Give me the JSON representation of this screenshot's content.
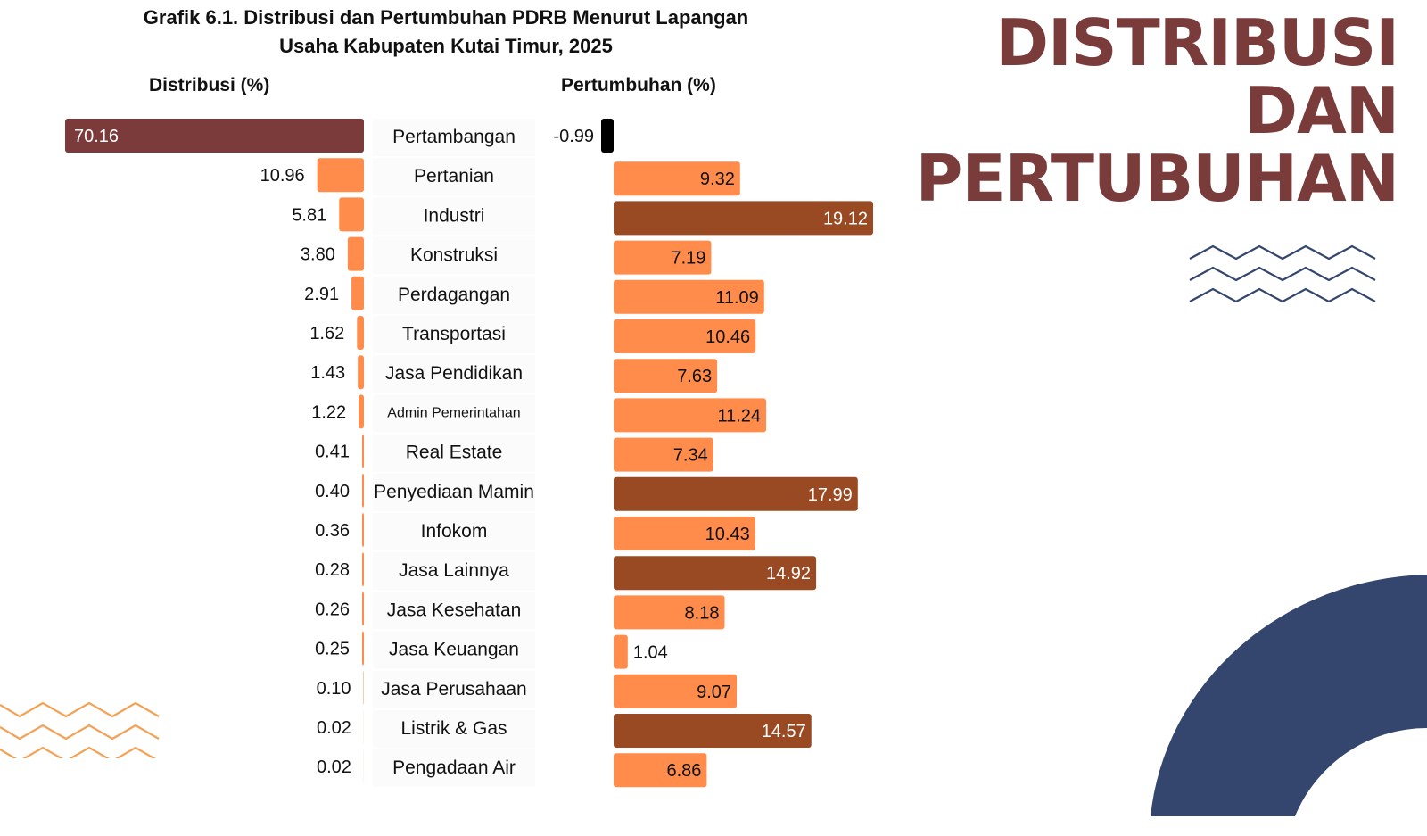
{
  "chart_data": {
    "type": "bar",
    "title": "Grafik 6.1. Distribusi dan Pertumbuhan PDRB Menurut Lapangan Usaha Kabupaten Kutai Timur, 2025",
    "title_lines": [
      "Grafik 6.1. Distribusi dan Pertumbuhan PDRB Menurut Lapangan",
      "Usaha Kabupaten Kutai Timur, 2025"
    ],
    "orientation": "horizontal",
    "categories": [
      "Pertambangan",
      "Pertanian",
      "Industri",
      "Konstruksi",
      "Perdagangan",
      "Transportasi",
      "Jasa Pendidikan",
      "Admin Pemerintahan",
      "Real Estate",
      "Penyediaan Mamin",
      "Infokom",
      "Jasa Lainnya",
      "Jasa Kesehatan",
      "Jasa Keuangan",
      "Jasa Perusahaan",
      "Listrik & Gas",
      "Pengadaan Air"
    ],
    "series": [
      {
        "name": "Distribusi (%)",
        "direction": "left",
        "values": [
          70.16,
          10.96,
          5.81,
          3.8,
          2.91,
          1.62,
          1.43,
          1.22,
          0.41,
          0.4,
          0.36,
          0.28,
          0.26,
          0.25,
          0.1,
          0.02,
          0.02
        ],
        "labels": [
          "70.16",
          "10.96",
          "5.81",
          "3.80",
          "2.91",
          "1.62",
          "1.43",
          "1.22",
          "0.41",
          "0.40",
          "0.36",
          "0.28",
          "0.26",
          "0.25",
          "0.10",
          "0.02",
          "0.02"
        ]
      },
      {
        "name": "Pertumbuhan (%)",
        "direction": "right",
        "values": [
          -0.99,
          9.32,
          19.12,
          7.19,
          11.09,
          10.46,
          7.63,
          11.24,
          7.34,
          17.99,
          10.43,
          14.92,
          8.18,
          1.04,
          9.07,
          14.57,
          6.86
        ],
        "labels": [
          "-0.99",
          "9.32",
          "19.12",
          "7.19",
          "11.09",
          "10.46",
          "7.63",
          "11.24",
          "7.34",
          "17.99",
          "10.43",
          "14.92",
          "8.18",
          "1.04",
          "9.07",
          "14.57",
          "6.86"
        ]
      }
    ],
    "xlabel": "",
    "ylabel": "",
    "dist_range": [
      0,
      72
    ],
    "growth_range": [
      -1,
      20
    ],
    "grid": false,
    "legend": "none",
    "colors": {
      "highlight_dist": "#7b3b3b",
      "normal_bar": "#ff8c4a",
      "highlight_growth": "#9a4a22",
      "negative": "#000000",
      "label_bg": "#fbfbfb"
    },
    "highlight_dist_index": [
      0
    ],
    "highlight_growth_index": [
      2,
      9,
      11,
      15
    ]
  },
  "headers": {
    "distribusi": "Distribusi (%)",
    "pertumbuhan": "Pertumbuhan (%)"
  },
  "side_title": {
    "lines": [
      "DISTRIBUSI",
      "DAN",
      "PERTUBUHAN"
    ],
    "color": "#7a3b3b"
  },
  "decor_colors": {
    "navy": "#34456e",
    "orange_zigzag": "#f2a155"
  }
}
